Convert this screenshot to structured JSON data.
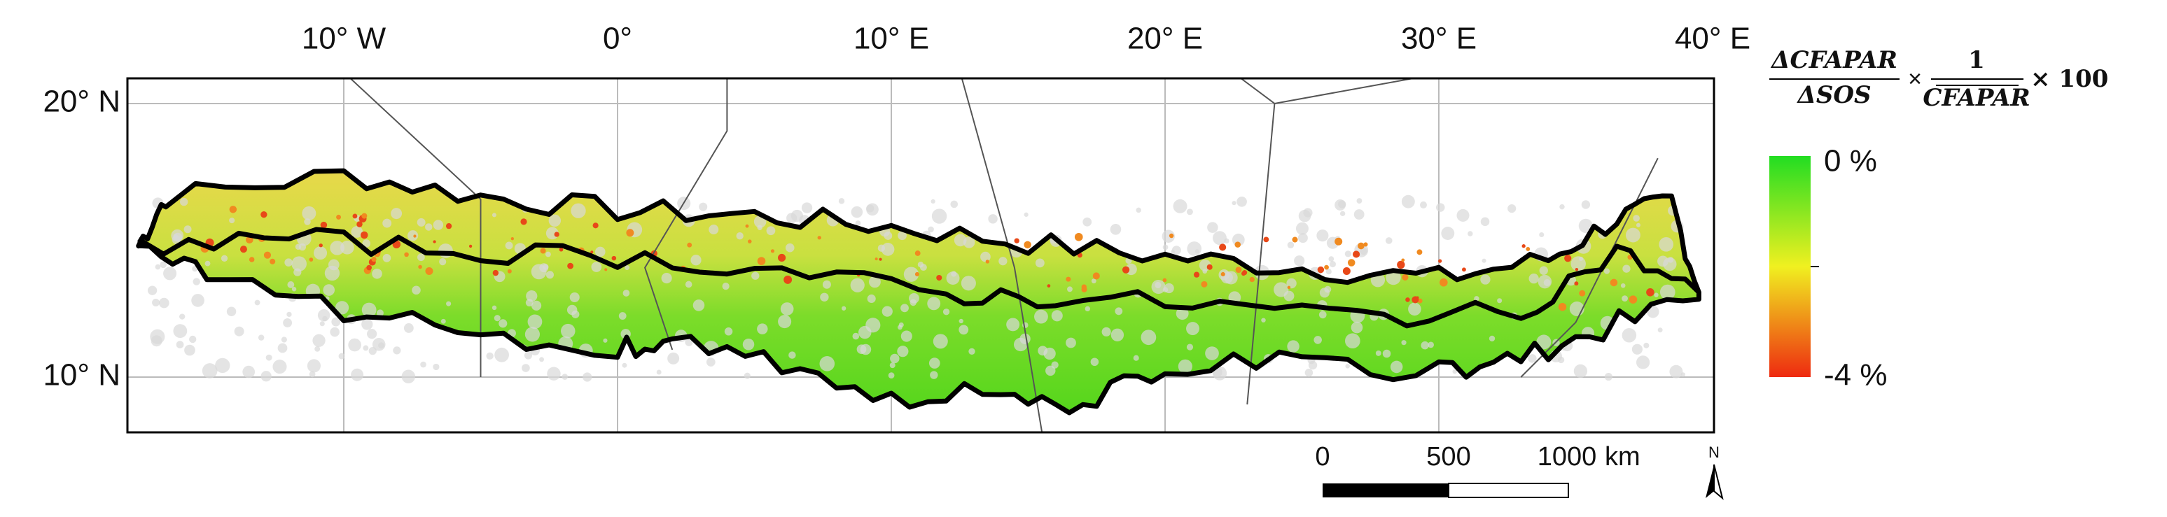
{
  "map": {
    "lon_labels": [
      "10° W",
      "0°",
      "10° E",
      "20° E",
      "30° E",
      "40° E"
    ],
    "lat_labels": [
      "20° N",
      "10° N"
    ],
    "legend": {
      "formula": {
        "numerator": "ΔCFAPAR",
        "denominator": "ΔSOS",
        "times": "×",
        "one": "1",
        "mean": "CFAPAR",
        "hundred": "× 100"
      },
      "top_label": "0 %",
      "bottom_label": "-4 %"
    },
    "scale_bar": {
      "labels": [
        "0",
        "500",
        "1000"
      ],
      "unit": "km"
    },
    "north": "N"
  }
}
